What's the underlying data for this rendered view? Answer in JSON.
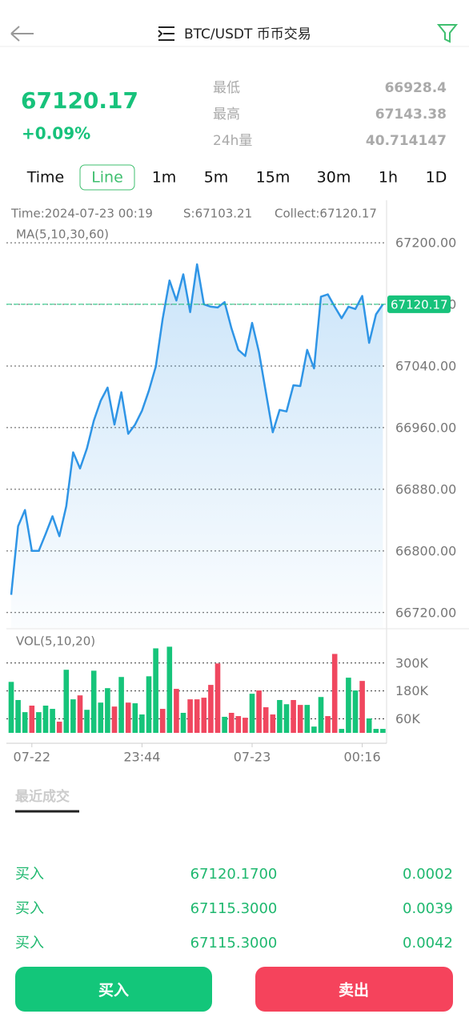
{
  "header": {
    "title": "BTC/USDT 币币交易"
  },
  "ticker": {
    "price": "67120.17",
    "change": "+0.09%",
    "stats": [
      [
        "最低",
        "66928.4"
      ],
      [
        "最高",
        "67143.38"
      ],
      [
        "24h量",
        "40.714147"
      ]
    ]
  },
  "timeframes": {
    "items": [
      "Time",
      "Line",
      "1m",
      "5m",
      "15m",
      "30m",
      "1h",
      "1D"
    ],
    "selected": 1
  },
  "chart_data": [
    {
      "type": "line",
      "info": [
        "Time:2024-07-23 00:19",
        "S:67103.21",
        "Collect:67120.17"
      ],
      "subtitle": "MA(5,10,30,60)",
      "color": "#2f95e6",
      "current": 67120.17,
      "current_color": "#17c27b",
      "values": [
        66743,
        66832,
        66853,
        66800,
        66800,
        66822,
        66845,
        66819,
        66858,
        66928,
        66907,
        66933,
        66969,
        66995,
        67012,
        66964,
        67006,
        66952,
        66964,
        66982,
        67008,
        67039,
        67101,
        67151,
        67125,
        67159,
        67110,
        67172,
        67120,
        67117,
        67116,
        67123,
        67089,
        67061,
        67053,
        67096,
        67058,
        67006,
        66954,
        66983,
        66981,
        67015,
        67014,
        67061,
        67037,
        67130,
        67133,
        67117,
        67102,
        67117,
        67114,
        67131,
        67070,
        67107,
        67120.17
      ],
      "ylim": [
        66700,
        67250
      ],
      "yticks": [
        {
          "value": 66720,
          "label": "66720.00"
        },
        {
          "value": 66800,
          "label": "66800.00"
        },
        {
          "value": 66880,
          "label": "66880.00"
        },
        {
          "value": 66960,
          "label": "66960.00"
        },
        {
          "value": 67040,
          "label": "67040.00"
        },
        {
          "value": 67120,
          "label": "67120.00"
        },
        {
          "value": 67200,
          "label": "67200.00"
        }
      ],
      "grid": true
    },
    {
      "type": "bar",
      "title": "VOL(5,10,20)",
      "categories": [
        null,
        null,
        null,
        "07-22",
        null,
        null,
        null,
        null,
        null,
        null,
        null,
        null,
        null,
        null,
        null,
        null,
        null,
        null,
        null,
        "23:44",
        null,
        null,
        null,
        null,
        null,
        null,
        null,
        null,
        null,
        null,
        null,
        null,
        null,
        null,
        null,
        "07-23",
        null,
        null,
        null,
        null,
        null,
        null,
        null,
        null,
        null,
        null,
        null,
        null,
        null,
        null,
        null,
        "00:16",
        null,
        null,
        null
      ],
      "values": [
        219000,
        141000,
        89000,
        117000,
        89000,
        117000,
        103000,
        48000,
        271000,
        144000,
        161000,
        99000,
        267000,
        130000,
        192000,
        113000,
        240000,
        130000,
        127000,
        79000,
        243000,
        363000,
        103000,
        370000,
        189000,
        86000,
        144000,
        144000,
        151000,
        206000,
        298000,
        69000,
        86000,
        72000,
        65000,
        168000,
        182000,
        110000,
        79000,
        141000,
        123000,
        141000,
        120000,
        120000,
        27000,
        154000,
        72000,
        339000,
        17000,
        237000,
        182000,
        223000,
        62000,
        17000,
        17000
      ],
      "colors": [
        "#16c47a",
        "#16c47a",
        "#16c47a",
        "#f0475f",
        "#16c47a",
        "#16c47a",
        "#16c47a",
        "#f0475f",
        "#16c47a",
        "#16c47a",
        "#f0475f",
        "#16c47a",
        "#16c47a",
        "#16c47a",
        "#16c47a",
        "#f0475f",
        "#16c47a",
        "#f0475f",
        "#16c47a",
        "#16c47a",
        "#16c47a",
        "#16c47a",
        "#f0475f",
        "#16c47a",
        "#f0475f",
        "#16c47a",
        "#f0475f",
        "#f0475f",
        "#f0475f",
        "#f0475f",
        "#f0475f",
        "#16c47a",
        "#f0475f",
        "#f0475f",
        "#f0475f",
        "#16c47a",
        "#f0475f",
        "#f0475f",
        "#f0475f",
        "#16c47a",
        "#16c47a",
        "#f0475f",
        "#f0475f",
        "#16c47a",
        "#16c47a",
        "#16c47a",
        "#f0475f",
        "#f0475f",
        "#16c47a",
        "#16c47a",
        "#16c47a",
        "#f0475f",
        "#16c47a",
        "#16c47a",
        "#16c47a"
      ],
      "ylim": [
        0,
        430000
      ],
      "yticks": [
        {
          "value": 60000,
          "label": "60K"
        },
        {
          "value": 180000,
          "label": "180K"
        },
        {
          "value": 300000,
          "label": "300K"
        }
      ],
      "grid": true
    }
  ],
  "trades": {
    "title": "最近成交",
    "rows": [
      [
        "买入",
        "67120.1700",
        "0.0002"
      ],
      [
        "买入",
        "67115.3000",
        "0.0039"
      ],
      [
        "买入",
        "67115.3000",
        "0.0042"
      ]
    ]
  },
  "actions": {
    "buy": "买入",
    "sell": "卖出"
  }
}
